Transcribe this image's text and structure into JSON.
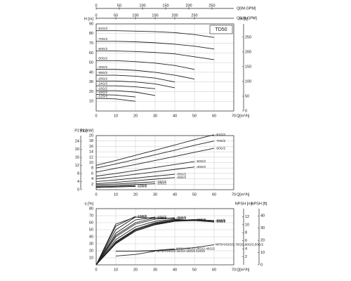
{
  "chart_data": [
    {
      "type": "line",
      "box_label": "TD50",
      "label_at": "start",
      "xlabel": "Q[m³/h]",
      "x": [
        0,
        10,
        20,
        30,
        40,
        50,
        60
      ],
      "xlim": [
        0,
        70
      ],
      "xticks": [
        0,
        10,
        20,
        30,
        40,
        50,
        60,
        70
      ],
      "x2label": "Q[IM.GPM]",
      "x2lim": [
        0,
        297
      ],
      "x2ticks": [
        0,
        50,
        100,
        150,
        200,
        250
      ],
      "x3label": "Q[US.GPM]",
      "x3lim": [
        0,
        350
      ],
      "x3ticks": [
        0,
        50,
        100,
        150,
        200,
        250
      ],
      "ylabel": "H [m]",
      "ylim": [
        0,
        90
      ],
      "yticks": [
        10,
        20,
        30,
        40,
        50,
        60,
        70,
        80,
        90
      ],
      "y2label": "H [ft]",
      "y2lim": [
        0,
        295
      ],
      "y2ticks": [
        0,
        50,
        100,
        150,
        200,
        250
      ],
      "grid": true,
      "series": [
        {
          "name": "-81G/2",
          "color": "#222",
          "values": [
            83,
            83,
            82.5,
            82,
            81,
            79,
            76
          ]
        },
        {
          "name": "-70G/2",
          "color": "#222",
          "values": [
            72,
            72,
            71.5,
            70.5,
            69,
            67,
            64
          ]
        },
        {
          "name": "-60G/2",
          "color": "#222",
          "values": [
            62,
            62,
            61.5,
            60.5,
            59,
            56,
            53
          ]
        },
        {
          "name": "-50G/2",
          "color": "#222",
          "values": [
            52,
            52,
            51,
            49.5,
            47,
            43,
            null
          ]
        },
        {
          "name": "-40G/2",
          "color": "#222",
          "values": [
            43,
            43,
            42,
            40,
            37,
            33,
            null
          ]
        },
        {
          "name": "-35G/2",
          "color": "#222",
          "values": [
            37,
            37,
            36,
            34,
            30,
            null,
            null
          ]
        },
        {
          "name": "-28G/2",
          "color": "#222",
          "values": [
            31,
            31,
            30,
            28,
            24,
            null,
            null
          ]
        },
        {
          "name": "-24G/2",
          "color": "#222",
          "values": [
            26,
            26,
            25,
            23,
            null,
            null,
            null
          ]
        },
        {
          "name": "-18G/2",
          "color": "#222",
          "values": [
            21,
            21,
            19.5,
            16,
            null,
            null,
            null
          ]
        },
        {
          "name": "-15G/2",
          "color": "#222",
          "values": [
            17,
            16.5,
            14.5,
            null,
            null,
            null,
            null
          ]
        },
        {
          "name": "-12G/2",
          "color": "#222",
          "values": [
            13,
            12.5,
            10,
            null,
            null,
            null,
            null
          ]
        }
      ]
    },
    {
      "type": "line",
      "label_at": "end",
      "xlabel": "Q[m³/h]",
      "x": [
        0,
        10,
        20,
        30,
        40,
        50,
        60
      ],
      "xlim": [
        0,
        70
      ],
      "xticks": [
        0,
        10,
        20,
        30,
        40,
        50,
        60,
        70
      ],
      "ylabel": "P2 [kW]",
      "ylim": [
        0,
        20
      ],
      "yticks": [
        2,
        4,
        6,
        8,
        10,
        12,
        14,
        16,
        18,
        20
      ],
      "y3label": "P2 [hp]",
      "y3side": "left",
      "y3lim": [
        0,
        26.8
      ],
      "y3ticks": [
        0,
        4,
        8,
        12,
        16,
        20,
        24
      ],
      "grid": true,
      "series": [
        {
          "name": "-81G/2",
          "color": "#222",
          "values": [
            9,
            10.8,
            12.7,
            14.6,
            16.5,
            18.5,
            20.3
          ]
        },
        {
          "name": "-70G/2",
          "color": "#222",
          "values": [
            8,
            9.5,
            11.2,
            12.9,
            14.6,
            16.4,
            18
          ]
        },
        {
          "name": "-60G/2",
          "color": "#222",
          "values": [
            6.5,
            7.9,
            9.3,
            10.8,
            12.3,
            13.8,
            15.3
          ]
        },
        {
          "name": "-50G/2",
          "color": "#222",
          "values": [
            5,
            6,
            7.1,
            8.2,
            9.3,
            10.4,
            null
          ]
        },
        {
          "name": "-40G/2",
          "color": "#222",
          "values": [
            4,
            4.8,
            5.7,
            6.6,
            7.5,
            8.4,
            null
          ]
        },
        {
          "name": "-35G/2",
          "color": "#222",
          "values": [
            3,
            3.6,
            4.3,
            5,
            5.7,
            null,
            null
          ]
        },
        {
          "name": "-28G/2",
          "color": "#222",
          "values": [
            2.2,
            2.7,
            3.3,
            3.9,
            4.5,
            null,
            null
          ]
        },
        {
          "name": "-24G/2",
          "color": "#222",
          "values": [
            1.8,
            2.1,
            2.5,
            2.9,
            null,
            null,
            null
          ]
        },
        {
          "name": "-18G/2",
          "color": "#222",
          "values": [
            1.3,
            1.6,
            1.9,
            2.2,
            null,
            null,
            null
          ]
        },
        {
          "name": "-15G/2",
          "color": "#222",
          "values": [
            1,
            1.2,
            1.5,
            null,
            null,
            null,
            null
          ]
        },
        {
          "name": "-12G/2",
          "color": "#222",
          "values": [
            0.8,
            1,
            1.2,
            null,
            null,
            null,
            null
          ]
        }
      ]
    },
    {
      "type": "line",
      "label_at": "end",
      "xlabel": "Q[m³/h]",
      "x": [
        0,
        10,
        20,
        30,
        40,
        50,
        60
      ],
      "xlim": [
        0,
        70
      ],
      "xticks": [
        0,
        10,
        20,
        30,
        40,
        50,
        60,
        70
      ],
      "ylabel": "η [%]",
      "ylim": [
        0,
        80
      ],
      "yticks": [
        10,
        20,
        30,
        40,
        50,
        60,
        70,
        80
      ],
      "y2label": "NPSH [m]",
      "y2lim": [
        0,
        14
      ],
      "y2ticks": [
        2,
        4,
        6,
        8,
        10,
        12
      ],
      "y3label": "NPSH [ft]",
      "y3side": "right",
      "y3lim": [
        0,
        45.9
      ],
      "y3ticks": [
        0,
        10,
        20,
        30,
        40
      ],
      "grid": true,
      "series": [
        {
          "name": "-12G/2",
          "color": "#222",
          "values": [
            0,
            58,
            68,
            null,
            null,
            null,
            null
          ]
        },
        {
          "name": "-15G/2",
          "color": "#222",
          "values": [
            0,
            55,
            69,
            null,
            null,
            null,
            null
          ]
        },
        {
          "name": "-18G/2",
          "color": "#222",
          "values": [
            0,
            50,
            68,
            66,
            null,
            null,
            null
          ]
        },
        {
          "name": "-24G/2",
          "color": "#222",
          "values": [
            0,
            45,
            64,
            68,
            null,
            null,
            null
          ]
        },
        {
          "name": "-28G/2",
          "color": "#222",
          "values": [
            0,
            42,
            60,
            67,
            66,
            null,
            null
          ]
        },
        {
          "name": "-35G/2",
          "color": "#222",
          "values": [
            0,
            40,
            58,
            65,
            67,
            null,
            null
          ]
        },
        {
          "name": "-40G/2",
          "color": "#222",
          "values": [
            0,
            36,
            54,
            62,
            65,
            63,
            null
          ]
        },
        {
          "name": "-50G/2",
          "color": "#222",
          "values": [
            0,
            33,
            51,
            60,
            64,
            64,
            null
          ]
        },
        {
          "name": "-60G/2",
          "color": "#222",
          "values": [
            0,
            30,
            48,
            57,
            62,
            63,
            61
          ]
        },
        {
          "name": "-70G/2",
          "color": "#222",
          "values": [
            0,
            31,
            49,
            58,
            62.5,
            64,
            62
          ]
        },
        {
          "name": "-81G/2",
          "color": "#222",
          "values": [
            0,
            32,
            50,
            59,
            63,
            64.5,
            63
          ]
        },
        {
          "name": "NPSH-24G/2-18G/2-15G/2-12G/2",
          "color": "#222",
          "axis": "y2",
          "values": [
            null,
            2.2,
            2.6,
            3.4,
            null,
            null,
            null
          ]
        },
        {
          "name": "NPSH-35G/2-28G/2-40G/2",
          "color": "#222",
          "axis": "y2",
          "values": [
            null,
            3.4,
            3.4,
            3.6,
            4.0,
            null,
            null
          ]
        },
        {
          "name": "NPSH-81G/2,70G/2,60G/2,50G/2",
          "color": "#222",
          "axis": "y2",
          "values": [
            null,
            3.4,
            3.4,
            3.5,
            3.8,
            4.3,
            5.0
          ]
        }
      ]
    }
  ]
}
